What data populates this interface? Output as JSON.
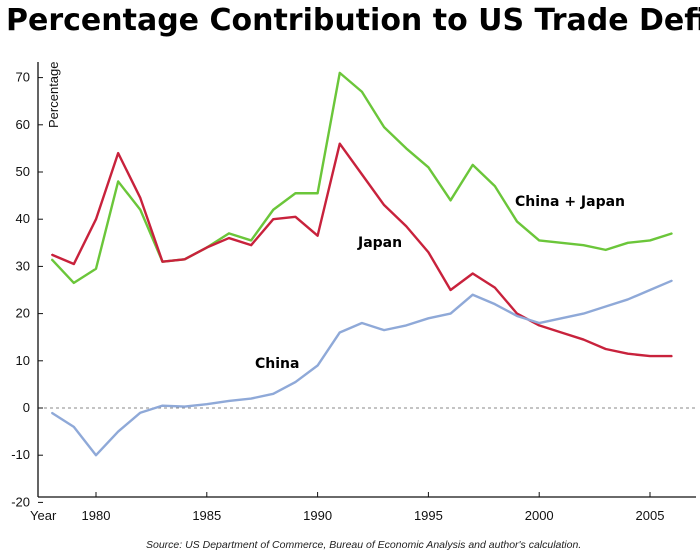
{
  "chart_data": {
    "type": "line",
    "title": "Percentage Contribution to US Trade Deficit",
    "ylabel": "Percentage",
    "xlabel": "Year",
    "x_tick_labels": [
      "1980",
      "1985",
      "1990",
      "1995",
      "2000",
      "2005"
    ],
    "y_tick_labels": [
      "70",
      "60",
      "50",
      "40",
      "30",
      "20",
      "10",
      "0",
      "-10",
      "-20"
    ],
    "xlim": [
      1978,
      2007
    ],
    "ylim": [
      -20,
      73
    ],
    "grid": false,
    "source": "Source: US Department of Commerce, Bureau of Economic Analysis and author's calculation.",
    "x": [
      1978,
      1979,
      1980,
      1981,
      1982,
      1983,
      1984,
      1985,
      1986,
      1987,
      1988,
      1989,
      1990,
      1991,
      1992,
      1993,
      1994,
      1995,
      1996,
      1997,
      1998,
      1999,
      2000,
      2001,
      2002,
      2003,
      2004,
      2005,
      2006
    ],
    "series": [
      {
        "name": "China + Japan",
        "color": "#6bc63a",
        "values": [
          31.5,
          26.5,
          29.5,
          48,
          42,
          31,
          31.5,
          34,
          37,
          35.5,
          42,
          45.5,
          45.5,
          71,
          67,
          59.5,
          55,
          51,
          44,
          51.5,
          47,
          39.5,
          35.5,
          35,
          34.5,
          33.5,
          35,
          35.5,
          37
        ]
      },
      {
        "name": "Japan",
        "color": "#c8223c",
        "values": [
          32.5,
          30.5,
          40,
          54,
          44.5,
          31,
          31.5,
          34,
          36,
          34.5,
          40,
          40.5,
          36.5,
          56,
          49.5,
          43,
          38.5,
          33,
          25,
          28.5,
          25.5,
          20,
          17.5,
          16,
          14.5,
          12.5,
          11.5,
          11,
          11
        ]
      },
      {
        "name": "China",
        "color": "#8fa9d8",
        "values": [
          -1,
          -4,
          -10,
          -5,
          -1,
          0.5,
          0.3,
          0.8,
          1.5,
          2,
          3,
          5.5,
          9,
          16,
          18,
          16.5,
          17.5,
          19,
          20,
          24,
          22,
          19.5,
          18,
          19,
          20,
          21.5,
          23,
          25,
          27
        ]
      }
    ],
    "annotations": [
      "China + Japan",
      "Japan",
      "China"
    ]
  }
}
